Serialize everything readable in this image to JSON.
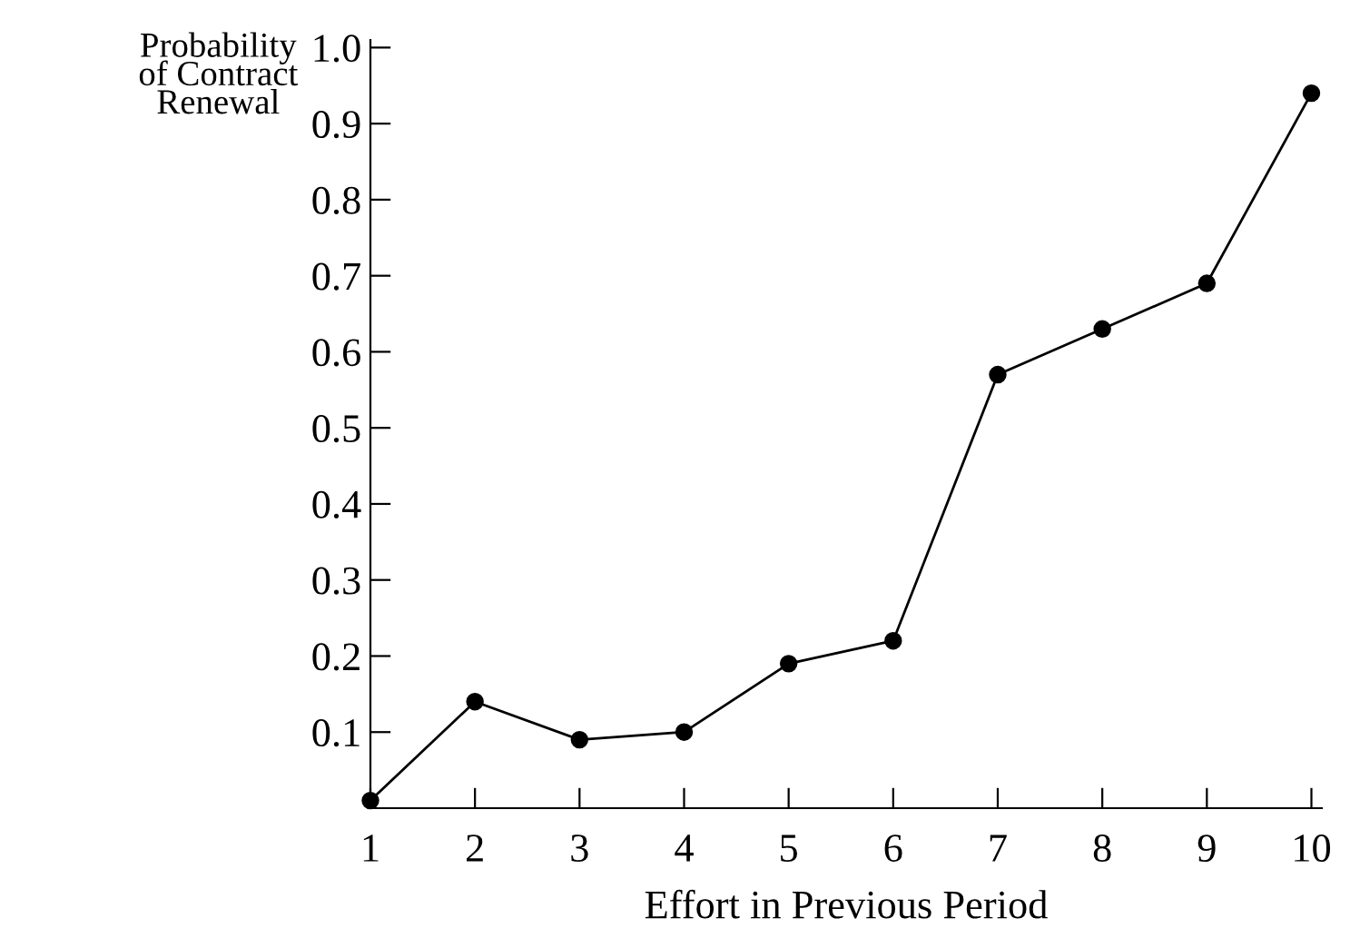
{
  "chart_data": {
    "type": "line",
    "xlabel": "Effort in Previous Period",
    "ylabel": "Probability\nof Contract\nRenewal",
    "x": [
      1,
      2,
      3,
      4,
      5,
      6,
      7,
      8,
      9,
      10
    ],
    "series": [
      {
        "color": "#000000",
        "values": [
          0.01,
          0.14,
          0.09,
          0.1,
          0.19,
          0.22,
          0.57,
          0.63,
          0.69,
          0.94
        ]
      }
    ],
    "xlim": [
      1,
      10.1
    ],
    "xticks": [
      1,
      2,
      3,
      4,
      5,
      6,
      7,
      8,
      9,
      10
    ],
    "ylim": [
      0,
      1.01
    ],
    "yticks": [
      0.1,
      0.2,
      0.3,
      0.4,
      0.5,
      0.6,
      0.7,
      0.8,
      0.9,
      {
        "value": 1.0,
        "label": "1.0"
      }
    ],
    "marker": "circle",
    "line_style": "solid",
    "grid": false,
    "legend": false
  }
}
